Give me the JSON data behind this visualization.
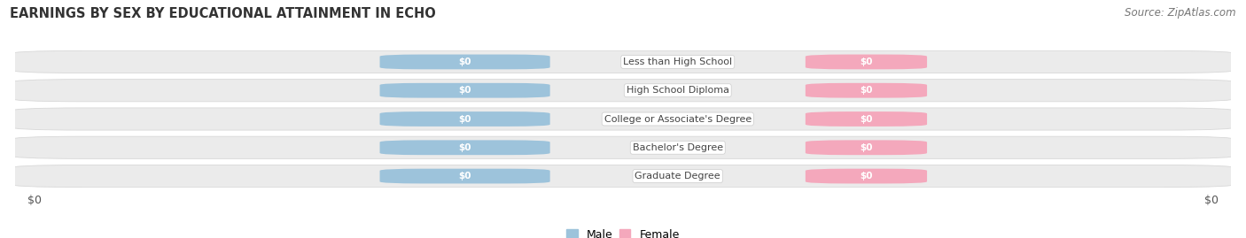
{
  "title": "EARNINGS BY SEX BY EDUCATIONAL ATTAINMENT IN ECHO",
  "source": "Source: ZipAtlas.com",
  "categories": [
    "Less than High School",
    "High School Diploma",
    "College or Associate's Degree",
    "Bachelor's Degree",
    "Graduate Degree"
  ],
  "male_values": [
    0,
    0,
    0,
    0,
    0
  ],
  "female_values": [
    0,
    0,
    0,
    0,
    0
  ],
  "male_color": "#9dc3db",
  "female_color": "#f4a8bc",
  "row_facecolor": "#ebebeb",
  "row_edgecolor": "#d8d8d8",
  "bg_color": "#ffffff",
  "label_color": "#444444",
  "value_label_color": "#ffffff",
  "xlabel_left": "$0",
  "xlabel_right": "$0",
  "title_fontsize": 10.5,
  "source_fontsize": 8.5,
  "bar_label_fontsize": 7.5,
  "category_fontsize": 8,
  "axis_label_fontsize": 9,
  "legend_male": "Male",
  "legend_female": "Female"
}
